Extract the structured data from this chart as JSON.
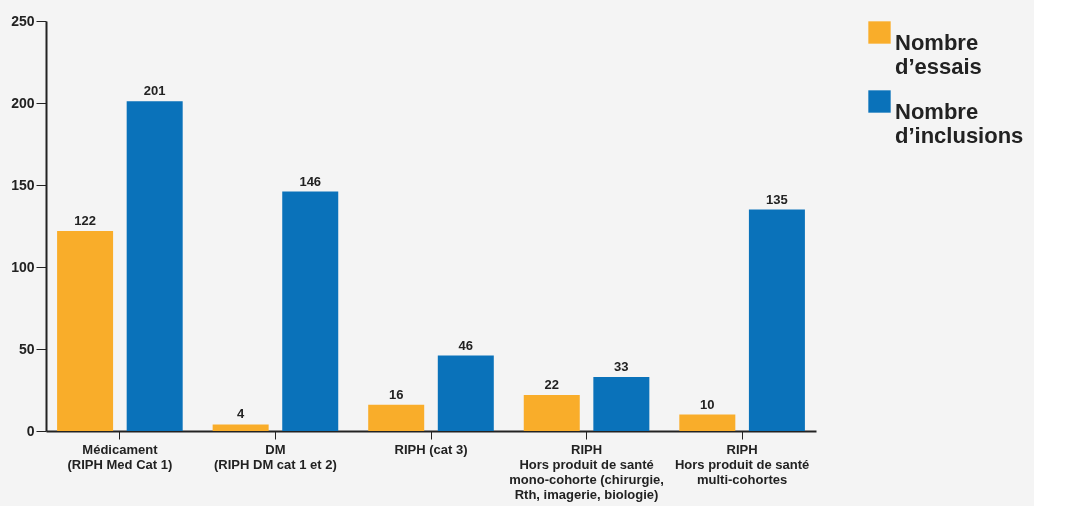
{
  "chart_data": {
    "type": "bar",
    "categories": [
      "Médicament\n(RIPH Med Cat 1)",
      "DM\n(RIPH DM cat 1 et 2)",
      "RIPH (cat 3)",
      "RIPH\nHors produit de santé\nmono-cohorte (chirurgie,\nRth, imagerie, biologie)",
      "RIPH\nHors produit de santé\nmulti-cohortes"
    ],
    "series": [
      {
        "name": "Nombre\nd’essais",
        "color": "#f9ad2a",
        "values": [
          122,
          4,
          16,
          22,
          10
        ]
      },
      {
        "name": "Nombre\nd’inclusions",
        "color": "#0a72ba",
        "values": [
          201,
          146,
          46,
          33,
          135
        ]
      }
    ],
    "ylim": [
      0,
      250
    ],
    "yticks": [
      0,
      50,
      100,
      150,
      200,
      250
    ],
    "grid": false,
    "legend": "top right",
    "data_labels": true
  }
}
